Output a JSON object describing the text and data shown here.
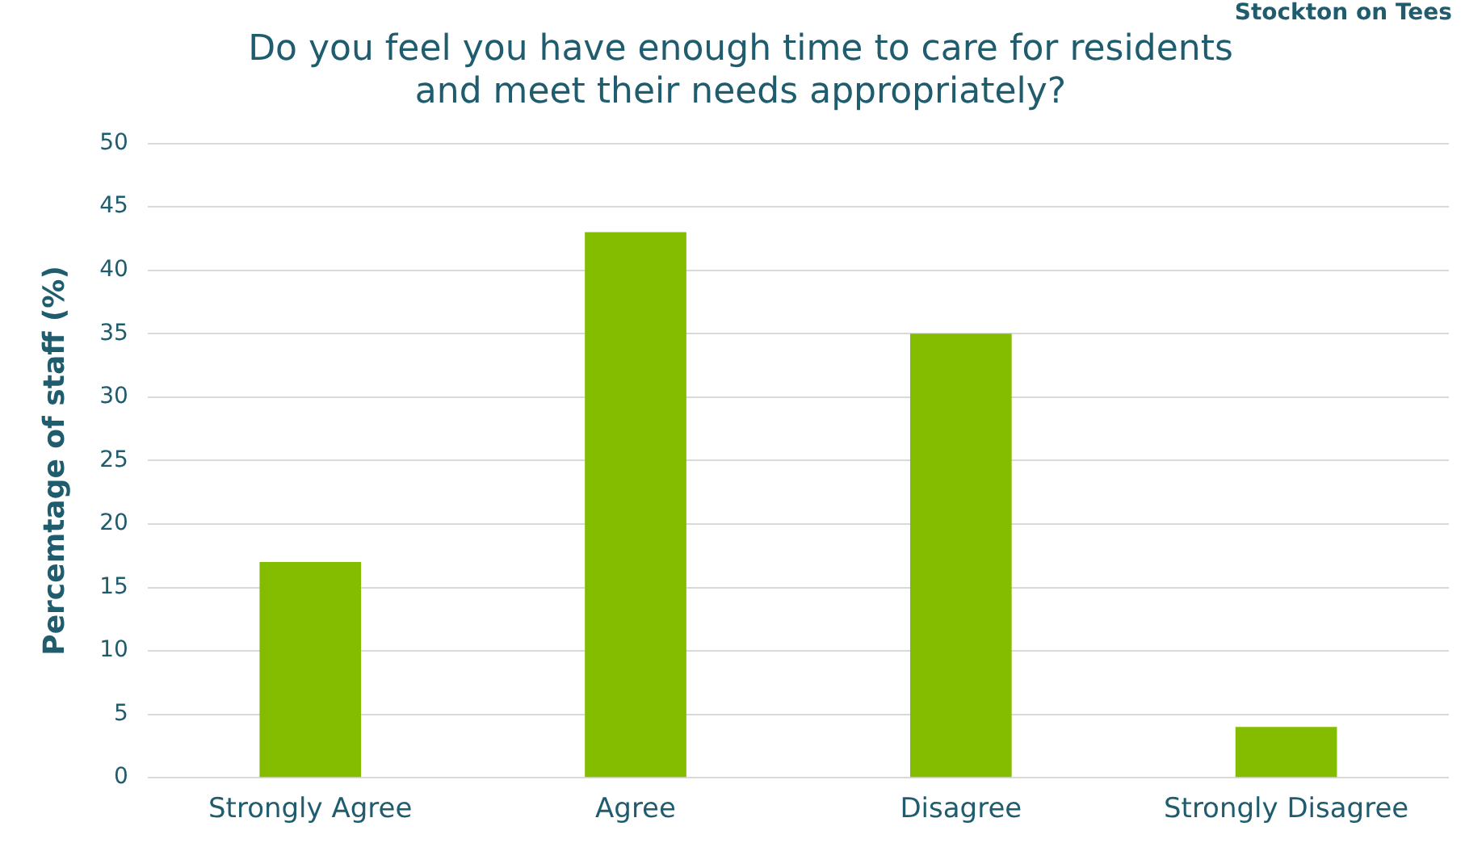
{
  "chart_data": {
    "type": "bar",
    "title": [
      "Do you feel you have enough time to care for residents",
      "and meet their needs appropriately?"
    ],
    "categories": [
      "Strongly Agree",
      "Agree",
      "Disagree",
      "Strongly Disagree"
    ],
    "values": [
      17,
      43,
      35,
      4
    ],
    "color": "#84bd00",
    "ylabel": "Percemtage of staff (%)",
    "ylim": [
      0,
      50
    ],
    "yticks": [
      0,
      5,
      10,
      15,
      20,
      25,
      30,
      35,
      40,
      45,
      50
    ],
    "grid": "y",
    "legend": false,
    "annotations": [
      "Stockton on Tees"
    ]
  }
}
